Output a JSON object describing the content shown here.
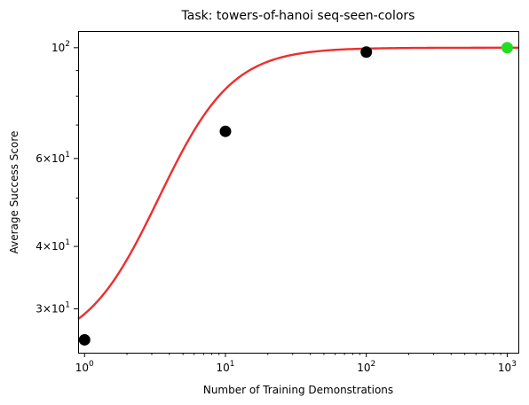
{
  "chart_data": {
    "type": "scatter",
    "title": "Task: towers-of-hanoi seq-seen-colors",
    "xlabel": "Number of Training Demonstrations",
    "ylabel": "Average Success Score",
    "xscale": "log",
    "yscale": "log",
    "xlim": [
      0.9,
      1200
    ],
    "ylim": [
      24.5,
      108
    ],
    "x_ticks": [
      {
        "value": 1,
        "base": "10",
        "exp": "0"
      },
      {
        "value": 10,
        "base": "10",
        "exp": "1"
      },
      {
        "value": 100,
        "base": "10",
        "exp": "2"
      },
      {
        "value": 1000,
        "base": "10",
        "exp": "3"
      }
    ],
    "y_ticks": [
      {
        "value": 30,
        "mant": "3",
        "base": "10",
        "exp": "1"
      },
      {
        "value": 40,
        "mant": "4",
        "base": "10",
        "exp": "1"
      },
      {
        "value": 60,
        "mant": "6",
        "base": "10",
        "exp": "1"
      },
      {
        "value": 100,
        "mant": "",
        "base": "10",
        "exp": "2"
      }
    ],
    "points": [
      {
        "x": 1,
        "y": 26.0,
        "color": "#000000"
      },
      {
        "x": 10,
        "y": 68.0,
        "color": "#000000"
      },
      {
        "x": 100,
        "y": 98.0,
        "color": "#000000"
      },
      {
        "x": 1000,
        "y": 100.0,
        "color": "#22dd22"
      }
    ],
    "fit_curve": {
      "color": "#ee2222",
      "form": "sigmoid in log10(x)",
      "lower": 25.0,
      "upper": 100.0,
      "midpoint_log10x": 0.7,
      "slope": 4.0
    }
  }
}
